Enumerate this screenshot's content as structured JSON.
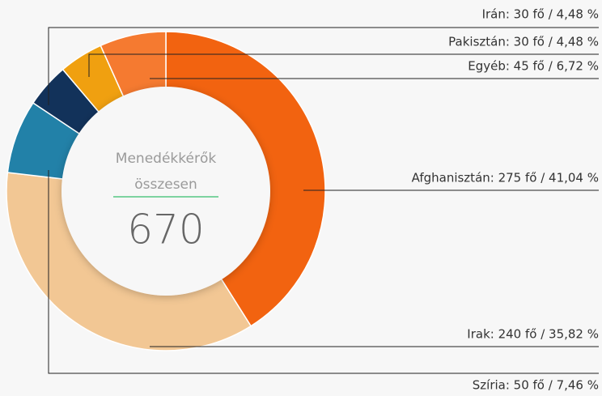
{
  "chart_data": {
    "type": "donut",
    "center_title": "Menedékkérők",
    "center_subtitle": "összesen",
    "total": 670,
    "values": [
      275,
      240,
      50,
      30,
      30,
      45
    ],
    "value_labels": [
      "Afghanisztán: 275 fő / 41,04 %",
      "Irak: 240 fő / 35,82 %",
      "Szíria: 50 fő / 7,46 %",
      "Irán: 30 fő / 4,48 %",
      "Pakisztán: 30 fő / 4,48 %",
      "Egyéb: 45 fő / 6,72 %"
    ],
    "colors": [
      "#f26310",
      "#f2c794",
      "#2281a8",
      "#12325a",
      "#f0a010",
      "#f57a30"
    ]
  }
}
